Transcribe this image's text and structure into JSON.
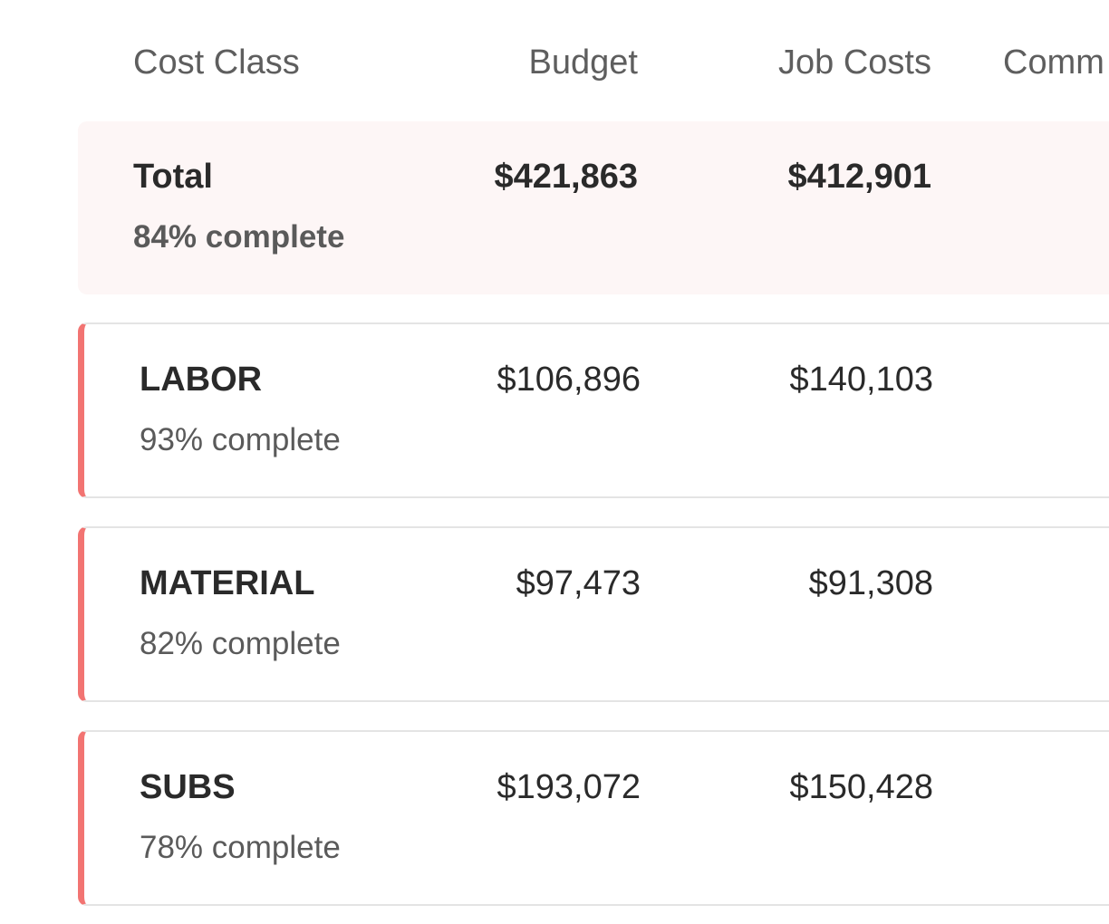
{
  "header": {
    "cost_class": "Cost Class",
    "budget": "Budget",
    "job_costs": "Job Costs",
    "committed": "Comm"
  },
  "total": {
    "label": "Total",
    "complete": "84% complete",
    "budget": "$421,863",
    "job_costs": "$412,901"
  },
  "rows": [
    {
      "label": "LABOR",
      "complete": "93% complete",
      "budget": "$106,896",
      "job_costs": "$140,103"
    },
    {
      "label": "MATERIAL",
      "complete": "82% complete",
      "budget": "$97,473",
      "job_costs": "$91,308"
    },
    {
      "label": "SUBS",
      "complete": "78% complete",
      "budget": "$193,072",
      "job_costs": "$150,428"
    }
  ],
  "colors": {
    "accent": "#f27472",
    "total_bg": "#fdf6f6",
    "border": "#e4e4e4"
  }
}
